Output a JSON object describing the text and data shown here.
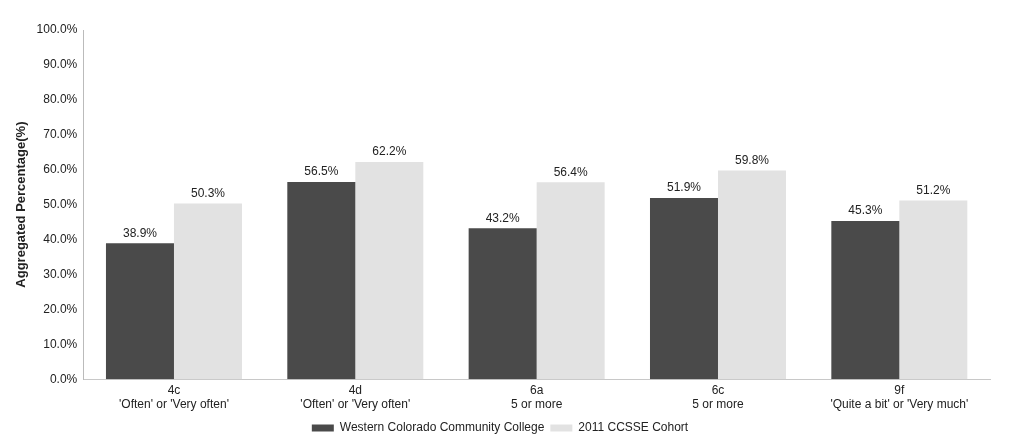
{
  "chart_data": {
    "type": "bar",
    "ylabel": "Aggregated Percentage(%)",
    "categories": [
      "4c\n'Often' or 'Very often'",
      "4d\n'Often' or 'Very often'",
      "6a\n5 or more",
      "6c\n5 or more",
      "9f\n'Quite a bit' or 'Very much'"
    ],
    "series": [
      {
        "name": "Western Colorado Community College",
        "color": "#4a4a4a",
        "values": [
          38.9,
          56.5,
          43.2,
          51.9,
          45.3
        ],
        "value_labels": [
          "38.9%",
          "56.5%",
          "43.2%",
          "51.9%",
          "45.3%"
        ]
      },
      {
        "name": "2011 CCSSE Cohort",
        "color": "#e2e2e2",
        "values": [
          50.3,
          62.2,
          56.4,
          59.8,
          51.2
        ],
        "value_labels": [
          "50.3%",
          "62.2%",
          "56.4%",
          "59.8%",
          "51.2%"
        ]
      }
    ],
    "ylim": [
      0,
      100
    ],
    "yticks": [
      {
        "value": 0,
        "label": "0.0%"
      },
      {
        "value": 10,
        "label": "10.0%"
      },
      {
        "value": 20,
        "label": "20.0%"
      },
      {
        "value": 30,
        "label": "30.0%"
      },
      {
        "value": 40,
        "label": "40.0%"
      },
      {
        "value": 50,
        "label": "50.0%"
      },
      {
        "value": 60,
        "label": "60.0%"
      },
      {
        "value": 70,
        "label": "70.0%"
      },
      {
        "value": 80,
        "label": "80.0%"
      },
      {
        "value": 90,
        "label": "90.0%"
      },
      {
        "value": 100,
        "label": "100.0%"
      }
    ],
    "grid": false,
    "legend": "bottom"
  }
}
